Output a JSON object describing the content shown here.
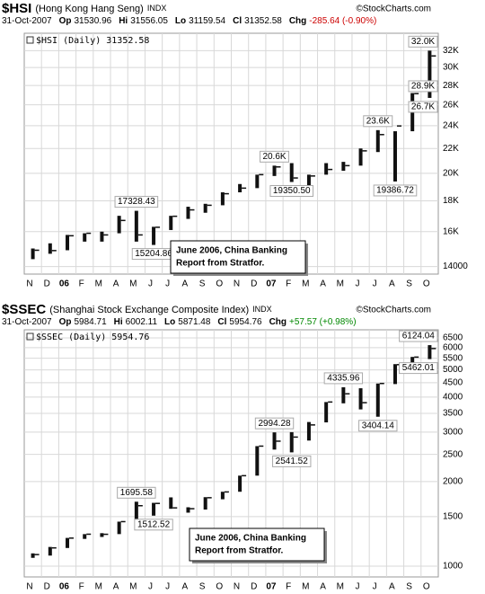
{
  "chart_data": [
    {
      "type": "hlc",
      "symbol": "$HSI",
      "name": "(Hong Kong Hang Seng)",
      "exchange": "INDX",
      "copyright": "©StockCharts.com",
      "date": "31-Oct-2007",
      "quote": [
        {
          "label": "Op",
          "value": 31530.96
        },
        {
          "label": "Hi",
          "value": 31556.05
        },
        {
          "label": "Lo",
          "value": 31159.54
        },
        {
          "label": "Cl",
          "value": 31352.58
        }
      ],
      "change": {
        "label": "Chg",
        "text": "-285.64 (-0.90%)",
        "color": "#cc0000"
      },
      "legend": "$HSI (Daily) 31352.58",
      "callout": [
        "June 2006, China Banking",
        "Report from Stratfor."
      ],
      "log_scale": true,
      "grid": true,
      "color": "#111111",
      "categories": [
        "N",
        "D",
        "06",
        "F",
        "M",
        "A",
        "M",
        "J",
        "J",
        "A",
        "S",
        "O",
        "N",
        "D",
        "07",
        "F",
        "M",
        "A",
        "M",
        "J",
        "J",
        "A",
        "S",
        "O"
      ],
      "high": [
        15000,
        15300,
        15800,
        15900,
        16000,
        17000,
        17328.43,
        16300,
        17000,
        17600,
        17800,
        18600,
        19200,
        19900,
        20600,
        20800,
        19900,
        20800,
        20900,
        22000,
        23600,
        23500,
        27200,
        32000
      ],
      "low": [
        14400,
        14700,
        14900,
        15400,
        15400,
        15900,
        15400,
        15204.86,
        16100,
        16800,
        17200,
        17700,
        18600,
        18900,
        19800,
        19350.5,
        18700,
        19900,
        20200,
        20600,
        21700,
        19386.72,
        23500,
        26700
      ],
      "close": [
        14900,
        14880,
        15750,
        15900,
        15800,
        16700,
        15800,
        16270,
        16970,
        17390,
        17700,
        18500,
        18900,
        19900,
        20500,
        19650,
        19800,
        20300,
        20600,
        21800,
        23200,
        23980,
        27140,
        31352.58
      ],
      "annotations": [
        {
          "index": 6,
          "value": 17328.43
        },
        {
          "index": 7,
          "value": 15204.86
        },
        {
          "index": 14,
          "value": 20600,
          "label": "20.6K"
        },
        {
          "index": 15,
          "value": 19350.5,
          "label": "19350.50"
        },
        {
          "index": 20,
          "value": 23600,
          "label": "23.6K"
        },
        {
          "index": 21,
          "value": 19386.72
        },
        {
          "index": 23,
          "value": 26700,
          "label": "26.7K"
        },
        {
          "index": 23,
          "value": 28900,
          "label": "28.9K"
        },
        {
          "index": 23,
          "value": 32000,
          "label": "32.0K"
        }
      ],
      "ylim": [
        13600,
        34200
      ],
      "yticks": [
        {
          "value": 14000,
          "label": "14000"
        },
        {
          "value": 16000,
          "label": "16K"
        },
        {
          "value": 18000,
          "label": "18K"
        },
        {
          "value": 20000,
          "label": "20K"
        },
        {
          "value": 22000,
          "label": "22K"
        },
        {
          "value": 24000,
          "label": "24K"
        },
        {
          "value": 26000,
          "label": "26K"
        },
        {
          "value": 28000,
          "label": "28K"
        },
        {
          "value": 30000,
          "label": "30K"
        },
        {
          "value": 32000,
          "label": "32K"
        }
      ]
    },
    {
      "type": "hlc",
      "symbol": "$SSEC",
      "name": "(Shanghai Stock Exchange Composite Index)",
      "exchange": "INDX",
      "copyright": "©StockCharts.com",
      "date": "31-Oct-2007",
      "quote": [
        {
          "label": "Op",
          "value": 5984.71
        },
        {
          "label": "Hi",
          "value": 6002.11
        },
        {
          "label": "Lo",
          "value": 5871.48
        },
        {
          "label": "Cl",
          "value": 5954.76
        }
      ],
      "change": {
        "label": "Chg",
        "text": "+57.57 (+0.98%)",
        "color": "#008800"
      },
      "legend": "$SSEC (Daily) 5954.76",
      "callout": [
        "June 2006, China Banking",
        "Report from Stratfor."
      ],
      "log_scale": true,
      "grid": true,
      "color": "#111111",
      "categories": [
        "N",
        "D",
        "06",
        "F",
        "M",
        "A",
        "M",
        "J",
        "J",
        "A",
        "S",
        "O",
        "N",
        "D",
        "07",
        "F",
        "M",
        "A",
        "M",
        "J",
        "J",
        "A",
        "S",
        "O"
      ],
      "high": [
        1110,
        1170,
        1260,
        1300,
        1310,
        1440,
        1695.58,
        1680,
        1757,
        1620,
        1760,
        1840,
        2100,
        2675,
        2994.28,
        3000,
        3260,
        3840,
        4335.96,
        4300,
        4470,
        5240,
        5560,
        6124.04
      ],
      "low": [
        1070,
        1090,
        1160,
        1250,
        1270,
        1300,
        1440,
        1512.52,
        1600,
        1550,
        1590,
        1730,
        1840,
        2100,
        2600,
        2541.52,
        2800,
        3250,
        3800,
        3615,
        3404.14,
        4450,
        5200,
        5462.01
      ],
      "close": [
        1099,
        1161,
        1258,
        1299,
        1298,
        1440,
        1641,
        1672,
        1612,
        1601,
        1752,
        1837,
        2099,
        2675,
        2786,
        2881,
        3183,
        3841,
        4109,
        3820,
        4471,
        5218,
        5552,
        5954.76
      ],
      "annotations": [
        {
          "index": 6,
          "value": 1695.58
        },
        {
          "index": 7,
          "value": 1512.52
        },
        {
          "index": 14,
          "value": 2994.28
        },
        {
          "index": 15,
          "value": 2541.52
        },
        {
          "index": 18,
          "value": 4335.96
        },
        {
          "index": 20,
          "value": 3404.14
        },
        {
          "index": 23,
          "value": 6124.04
        },
        {
          "index": 23,
          "value": 5462.01
        }
      ],
      "ylim": [
        915,
        6945
      ],
      "yticks": [
        1000,
        1500,
        2000,
        2500,
        3000,
        3500,
        4000,
        4500,
        5000,
        5500,
        6000,
        6500
      ]
    }
  ]
}
